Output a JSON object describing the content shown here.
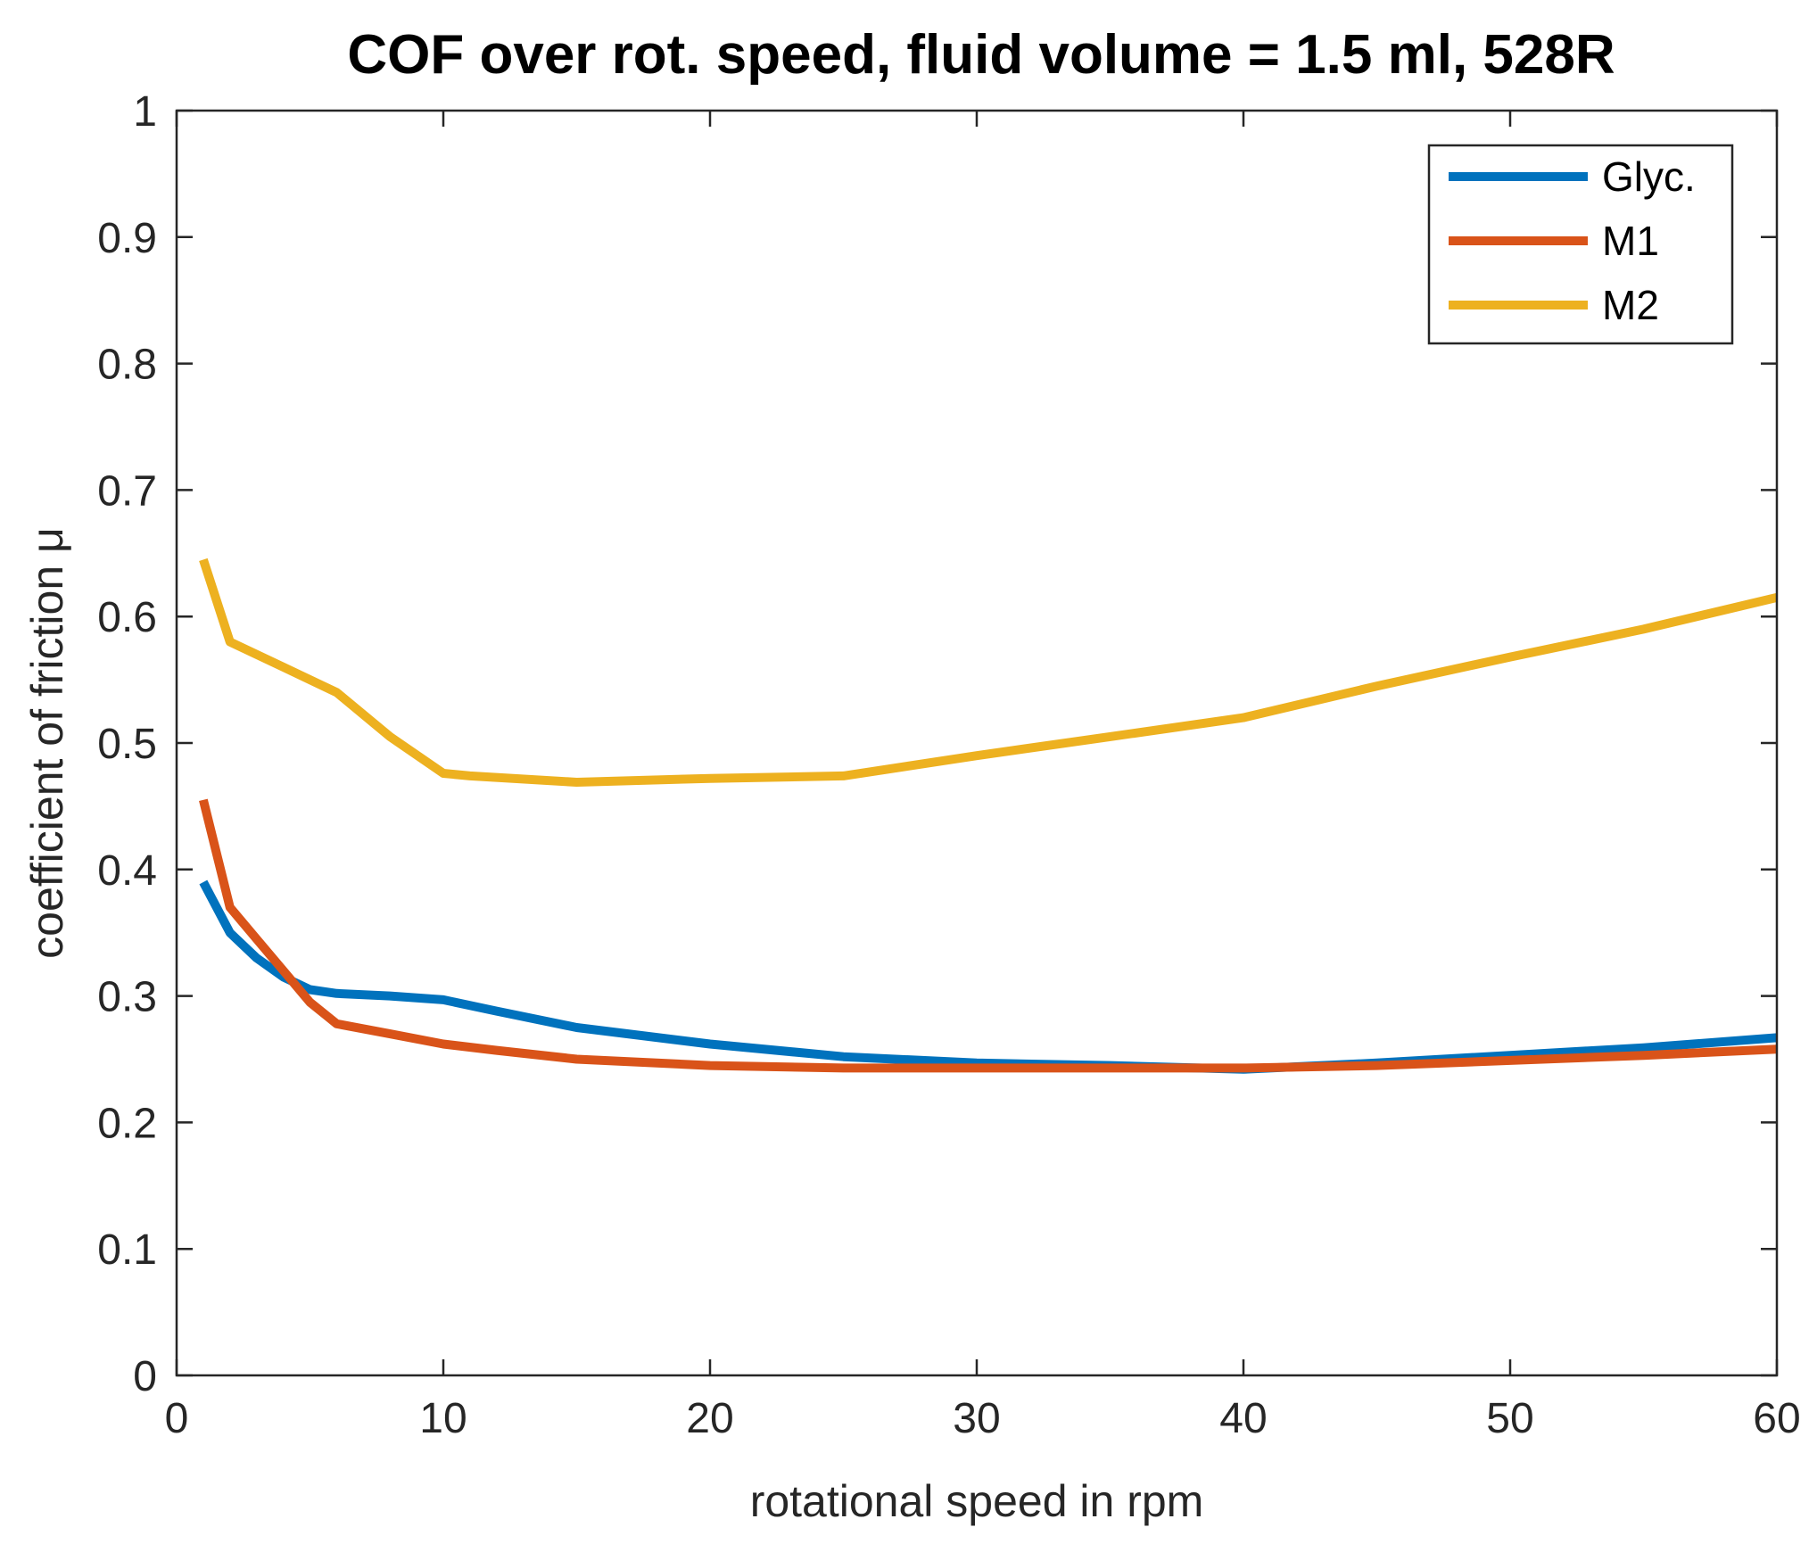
{
  "chart_data": {
    "type": "line",
    "title": "COF over rot. speed, fluid volume = 1.5 ml, 528R",
    "xlabel": "rotational speed in rpm",
    "ylabel": "coefficient of friction μ",
    "xlim": [
      0,
      60
    ],
    "ylim": [
      0,
      1
    ],
    "xticks": [
      "0",
      "10",
      "20",
      "30",
      "40",
      "50",
      "60"
    ],
    "yticks": [
      "0",
      "0.1",
      "0.2",
      "0.3",
      "0.4",
      "0.5",
      "0.6",
      "0.7",
      "0.8",
      "0.9",
      "1"
    ],
    "grid": false,
    "legend_position": "top-right",
    "series": [
      {
        "name": "Glyc.",
        "color": "#0072BD",
        "x": [
          1,
          2,
          3,
          4,
          5,
          6,
          8,
          10,
          12,
          15,
          20,
          25,
          30,
          35,
          40,
          45,
          50,
          55,
          60
        ],
        "y": [
          0.39,
          0.35,
          0.33,
          0.315,
          0.305,
          0.302,
          0.3,
          0.297,
          0.288,
          0.275,
          0.262,
          0.252,
          0.247,
          0.245,
          0.242,
          0.247,
          0.253,
          0.259,
          0.267
        ]
      },
      {
        "name": "M1",
        "color": "#D95319",
        "x": [
          1,
          2,
          3,
          4,
          5,
          6,
          8,
          10,
          12,
          15,
          20,
          25,
          30,
          35,
          40,
          45,
          50,
          55,
          60
        ],
        "y": [
          0.455,
          0.37,
          0.345,
          0.32,
          0.295,
          0.278,
          0.27,
          0.262,
          0.257,
          0.25,
          0.245,
          0.243,
          0.243,
          0.243,
          0.243,
          0.245,
          0.249,
          0.253,
          0.258
        ]
      },
      {
        "name": "M2",
        "color": "#EDB120",
        "x": [
          1,
          2,
          4,
          6,
          8,
          10,
          11,
          15,
          20,
          25,
          30,
          35,
          40,
          45,
          50,
          55,
          60
        ],
        "y": [
          0.645,
          0.58,
          0.56,
          0.54,
          0.505,
          0.476,
          0.474,
          0.469,
          0.472,
          0.474,
          0.49,
          0.505,
          0.52,
          0.545,
          0.568,
          0.59,
          0.615
        ]
      }
    ]
  }
}
